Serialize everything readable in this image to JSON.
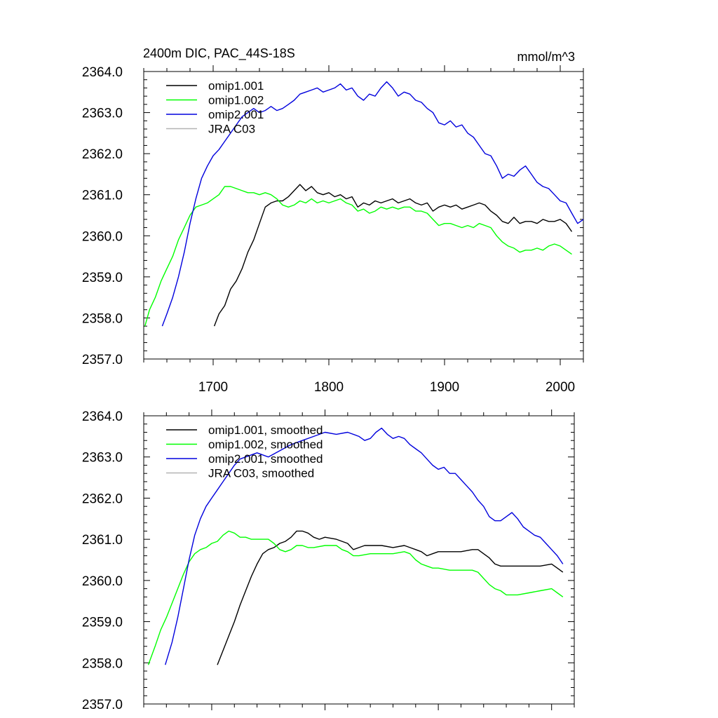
{
  "title_left": "2400m DIC, PAC_44S-18S",
  "title_right": "mmol/m^3",
  "chart_data": [
    {
      "type": "line",
      "xlim": [
        1640,
        2020
      ],
      "ylim": [
        2357.0,
        2364.0
      ],
      "x_ticks": [
        1700,
        1800,
        1900,
        2000
      ],
      "x_tick_labels": [
        "1700",
        "1800",
        "1900",
        "2000"
      ],
      "y_ticks": [
        2357.0,
        2358.0,
        2359.0,
        2360.0,
        2361.0,
        2362.0,
        2363.0,
        2364.0
      ],
      "y_tick_labels": [
        "2357.0",
        "2358.0",
        "2359.0",
        "2360.0",
        "2361.0",
        "2362.0",
        "2363.0",
        "2364.0"
      ],
      "legend_position": "top-left",
      "series": [
        {
          "name": "omip1.001",
          "color": "#000000",
          "x": [
            1701,
            1705,
            1710,
            1715,
            1720,
            1725,
            1730,
            1735,
            1740,
            1745,
            1750,
            1755,
            1760,
            1765,
            1770,
            1775,
            1780,
            1785,
            1790,
            1795,
            1800,
            1805,
            1810,
            1815,
            1820,
            1825,
            1830,
            1835,
            1840,
            1845,
            1850,
            1855,
            1860,
            1865,
            1870,
            1875,
            1880,
            1885,
            1890,
            1895,
            1900,
            1905,
            1910,
            1915,
            1920,
            1925,
            1930,
            1935,
            1940,
            1945,
            1950,
            1955,
            1960,
            1965,
            1970,
            1975,
            1980,
            1985,
            1990,
            1995,
            2000,
            2005,
            2010
          ],
          "y": [
            2357.8,
            2358.1,
            2358.3,
            2358.7,
            2358.9,
            2359.2,
            2359.6,
            2359.9,
            2360.3,
            2360.7,
            2360.8,
            2360.85,
            2360.85,
            2360.95,
            2361.1,
            2361.25,
            2361.1,
            2361.2,
            2361.05,
            2361.0,
            2361.05,
            2360.95,
            2361.0,
            2360.9,
            2360.95,
            2360.7,
            2360.8,
            2360.75,
            2360.85,
            2360.8,
            2360.85,
            2360.9,
            2360.8,
            2360.85,
            2360.9,
            2360.8,
            2360.75,
            2360.8,
            2360.6,
            2360.7,
            2360.75,
            2360.7,
            2360.75,
            2360.65,
            2360.7,
            2360.75,
            2360.8,
            2360.75,
            2360.6,
            2360.5,
            2360.35,
            2360.3,
            2360.45,
            2360.3,
            2360.35,
            2360.35,
            2360.3,
            2360.4,
            2360.35,
            2360.35,
            2360.4,
            2360.3,
            2360.1
          ]
        },
        {
          "name": "omip1.002",
          "color": "#00ff00",
          "x": [
            1641,
            1645,
            1650,
            1655,
            1660,
            1665,
            1670,
            1675,
            1680,
            1685,
            1690,
            1695,
            1700,
            1705,
            1710,
            1715,
            1720,
            1725,
            1730,
            1735,
            1740,
            1745,
            1750,
            1755,
            1760,
            1765,
            1770,
            1775,
            1780,
            1785,
            1790,
            1795,
            1800,
            1805,
            1810,
            1815,
            1820,
            1825,
            1830,
            1835,
            1840,
            1845,
            1850,
            1855,
            1860,
            1865,
            1870,
            1875,
            1880,
            1885,
            1890,
            1895,
            1900,
            1905,
            1910,
            1915,
            1920,
            1925,
            1930,
            1935,
            1940,
            1945,
            1950,
            1955,
            1960,
            1965,
            1970,
            1975,
            1980,
            1985,
            1990,
            1995,
            2000,
            2005,
            2010
          ],
          "y": [
            2357.8,
            2358.2,
            2358.5,
            2358.9,
            2359.2,
            2359.5,
            2359.9,
            2360.2,
            2360.5,
            2360.7,
            2360.75,
            2360.8,
            2360.9,
            2361.0,
            2361.2,
            2361.2,
            2361.15,
            2361.1,
            2361.05,
            2361.05,
            2361.0,
            2361.05,
            2361.0,
            2360.9,
            2360.75,
            2360.7,
            2360.75,
            2360.85,
            2360.8,
            2360.9,
            2360.8,
            2360.85,
            2360.8,
            2360.85,
            2360.9,
            2360.8,
            2360.75,
            2360.6,
            2360.65,
            2360.55,
            2360.6,
            2360.7,
            2360.65,
            2360.7,
            2360.65,
            2360.7,
            2360.7,
            2360.6,
            2360.6,
            2360.55,
            2360.4,
            2360.25,
            2360.3,
            2360.3,
            2360.25,
            2360.2,
            2360.25,
            2360.2,
            2360.3,
            2360.25,
            2360.2,
            2360.0,
            2359.85,
            2359.75,
            2359.7,
            2359.6,
            2359.65,
            2359.65,
            2359.7,
            2359.65,
            2359.75,
            2359.8,
            2359.75,
            2359.65,
            2359.55
          ]
        },
        {
          "name": "omip2.001",
          "color": "#0000dd",
          "x": [
            1656,
            1660,
            1665,
            1670,
            1675,
            1680,
            1685,
            1690,
            1695,
            1700,
            1705,
            1710,
            1715,
            1720,
            1725,
            1730,
            1735,
            1740,
            1745,
            1750,
            1755,
            1760,
            1765,
            1770,
            1775,
            1780,
            1785,
            1790,
            1795,
            1800,
            1805,
            1810,
            1815,
            1820,
            1825,
            1830,
            1835,
            1840,
            1845,
            1850,
            1855,
            1860,
            1865,
            1870,
            1875,
            1880,
            1885,
            1890,
            1895,
            1900,
            1905,
            1910,
            1915,
            1920,
            1925,
            1930,
            1935,
            1940,
            1945,
            1950,
            1955,
            1960,
            1965,
            1970,
            1975,
            1980,
            1985,
            1990,
            1995,
            2000,
            2005,
            2010,
            2015,
            2020
          ],
          "y": [
            2357.8,
            2358.1,
            2358.5,
            2359.0,
            2359.6,
            2360.3,
            2360.9,
            2361.4,
            2361.7,
            2361.95,
            2362.1,
            2362.3,
            2362.5,
            2362.7,
            2362.9,
            2363.0,
            2363.1,
            2363.0,
            2363.05,
            2363.15,
            2363.05,
            2363.1,
            2363.2,
            2363.3,
            2363.45,
            2363.5,
            2363.55,
            2363.6,
            2363.5,
            2363.55,
            2363.6,
            2363.7,
            2363.55,
            2363.6,
            2363.4,
            2363.3,
            2363.45,
            2363.4,
            2363.6,
            2363.75,
            2363.6,
            2363.4,
            2363.5,
            2363.45,
            2363.3,
            2363.25,
            2363.1,
            2363.0,
            2362.75,
            2362.7,
            2362.8,
            2362.65,
            2362.7,
            2362.5,
            2362.4,
            2362.2,
            2362.0,
            2361.95,
            2361.7,
            2361.4,
            2361.5,
            2361.45,
            2361.6,
            2361.7,
            2361.5,
            2361.3,
            2361.2,
            2361.15,
            2361.0,
            2360.85,
            2360.8,
            2360.55,
            2360.3,
            2360.4
          ]
        },
        {
          "name": "JRA C03",
          "color": "#b4b4b4",
          "x": [],
          "y": []
        }
      ]
    },
    {
      "type": "line",
      "xlim": [
        1640,
        2020
      ],
      "ylim": [
        2357.0,
        2364.0
      ],
      "x_ticks": [
        1700,
        1800,
        1900,
        2000
      ],
      "y_ticks": [
        2357.0,
        2358.0,
        2359.0,
        2360.0,
        2361.0,
        2362.0,
        2363.0,
        2364.0
      ],
      "y_tick_labels": [
        "2357.0",
        "2358.0",
        "2359.0",
        "2360.0",
        "2361.0",
        "2362.0",
        "2363.0",
        "2364.0"
      ],
      "legend_position": "top-left",
      "series": [
        {
          "name": "omip1.001, smoothed",
          "color": "#000000",
          "x": [
            1705,
            1710,
            1715,
            1720,
            1725,
            1730,
            1735,
            1740,
            1745,
            1750,
            1755,
            1760,
            1765,
            1770,
            1775,
            1780,
            1785,
            1790,
            1795,
            1800,
            1810,
            1820,
            1825,
            1830,
            1835,
            1840,
            1850,
            1860,
            1870,
            1875,
            1880,
            1885,
            1890,
            1895,
            1900,
            1910,
            1920,
            1930,
            1935,
            1940,
            1945,
            1950,
            1955,
            1960,
            1970,
            1980,
            1990,
            2000,
            2005,
            2010
          ],
          "y": [
            2357.95,
            2358.3,
            2358.65,
            2359.0,
            2359.4,
            2359.75,
            2360.1,
            2360.4,
            2360.65,
            2360.75,
            2360.8,
            2360.9,
            2360.95,
            2361.05,
            2361.2,
            2361.2,
            2361.15,
            2361.05,
            2361.0,
            2361.05,
            2361.0,
            2360.9,
            2360.75,
            2360.8,
            2360.85,
            2360.85,
            2360.85,
            2360.8,
            2360.85,
            2360.8,
            2360.75,
            2360.7,
            2360.6,
            2360.65,
            2360.7,
            2360.7,
            2360.7,
            2360.75,
            2360.75,
            2360.65,
            2360.55,
            2360.4,
            2360.35,
            2360.35,
            2360.35,
            2360.35,
            2360.35,
            2360.4,
            2360.3,
            2360.2
          ]
        },
        {
          "name": "omip1.002, smoothed",
          "color": "#00ff00",
          "x": [
            1644,
            1650,
            1655,
            1660,
            1665,
            1670,
            1675,
            1680,
            1685,
            1690,
            1695,
            1700,
            1705,
            1710,
            1715,
            1720,
            1725,
            1730,
            1735,
            1740,
            1745,
            1750,
            1755,
            1760,
            1765,
            1770,
            1775,
            1780,
            1785,
            1790,
            1800,
            1810,
            1815,
            1820,
            1825,
            1830,
            1840,
            1850,
            1860,
            1870,
            1875,
            1880,
            1885,
            1890,
            1895,
            1900,
            1910,
            1920,
            1930,
            1935,
            1940,
            1945,
            1950,
            1955,
            1960,
            1970,
            1980,
            1990,
            2000,
            2005,
            2010
          ],
          "y": [
            2357.95,
            2358.4,
            2358.8,
            2359.1,
            2359.45,
            2359.8,
            2360.15,
            2360.45,
            2360.65,
            2360.75,
            2360.8,
            2360.9,
            2360.95,
            2361.1,
            2361.2,
            2361.15,
            2361.05,
            2361.05,
            2361.0,
            2361.0,
            2361.0,
            2361.0,
            2360.9,
            2360.75,
            2360.7,
            2360.75,
            2360.85,
            2360.85,
            2360.8,
            2360.8,
            2360.85,
            2360.85,
            2360.75,
            2360.7,
            2360.6,
            2360.6,
            2360.65,
            2360.65,
            2360.65,
            2360.7,
            2360.65,
            2360.5,
            2360.4,
            2360.35,
            2360.3,
            2360.3,
            2360.25,
            2360.25,
            2360.25,
            2360.2,
            2360.05,
            2359.9,
            2359.8,
            2359.75,
            2359.65,
            2359.65,
            2359.7,
            2359.75,
            2359.8,
            2359.7,
            2359.6
          ]
        },
        {
          "name": "omip2.001, smoothed",
          "color": "#0000dd",
          "x": [
            1659,
            1665,
            1670,
            1675,
            1680,
            1685,
            1690,
            1695,
            1700,
            1705,
            1710,
            1715,
            1720,
            1725,
            1730,
            1740,
            1750,
            1760,
            1770,
            1780,
            1790,
            1800,
            1810,
            1820,
            1830,
            1835,
            1840,
            1845,
            1850,
            1855,
            1860,
            1865,
            1870,
            1875,
            1880,
            1885,
            1890,
            1895,
            1900,
            1905,
            1910,
            1915,
            1920,
            1925,
            1930,
            1935,
            1940,
            1945,
            1950,
            1955,
            1960,
            1965,
            1970,
            1975,
            1980,
            1985,
            1990,
            1995,
            2000,
            2005,
            2010
          ],
          "y": [
            2357.95,
            2358.5,
            2359.1,
            2359.8,
            2360.5,
            2361.1,
            2361.5,
            2361.8,
            2362.0,
            2362.2,
            2362.4,
            2362.6,
            2362.8,
            2362.95,
            2363.0,
            2363.1,
            2363.0,
            2363.15,
            2363.3,
            2363.4,
            2363.5,
            2363.6,
            2363.55,
            2363.6,
            2363.5,
            2363.4,
            2363.45,
            2363.6,
            2363.7,
            2363.55,
            2363.45,
            2363.5,
            2363.45,
            2363.3,
            2363.2,
            2363.1,
            2362.95,
            2362.8,
            2362.7,
            2362.75,
            2362.6,
            2362.6,
            2362.45,
            2362.3,
            2362.15,
            2361.95,
            2361.8,
            2361.55,
            2361.45,
            2361.45,
            2361.55,
            2361.65,
            2361.5,
            2361.3,
            2361.2,
            2361.1,
            2361.05,
            2360.9,
            2360.75,
            2360.6,
            2360.4
          ]
        },
        {
          "name": "JRA C03, smoothed",
          "color": "#b4b4b4",
          "x": [],
          "y": []
        }
      ]
    }
  ]
}
